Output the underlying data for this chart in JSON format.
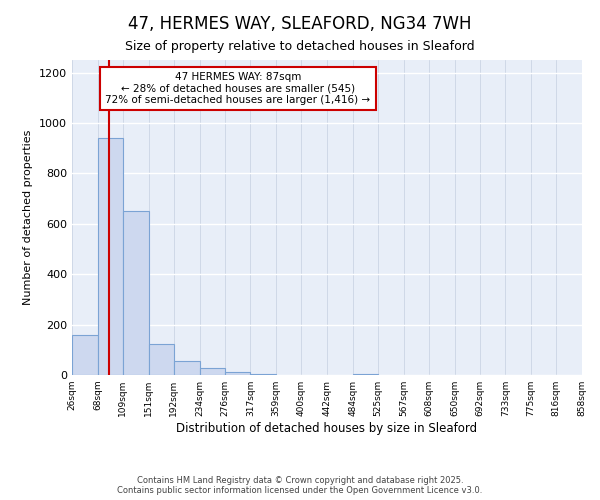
{
  "title1": "47, HERMES WAY, SLEAFORD, NG34 7WH",
  "title2": "Size of property relative to detached houses in Sleaford",
  "xlabel": "Distribution of detached houses by size in Sleaford",
  "ylabel": "Number of detached properties",
  "bin_edges": [
    26,
    68,
    109,
    151,
    192,
    234,
    276,
    317,
    359,
    400,
    442,
    484,
    525,
    567,
    608,
    650,
    692,
    733,
    775,
    816,
    858
  ],
  "bar_heights": [
    160,
    940,
    650,
    125,
    55,
    28,
    10,
    5,
    0,
    0,
    0,
    5,
    0,
    0,
    0,
    0,
    0,
    0,
    0,
    0
  ],
  "property_size": 87,
  "annotation_text": "47 HERMES WAY: 87sqm\n← 28% of detached houses are smaller (545)\n72% of semi-detached houses are larger (1,416) →",
  "bar_color": "#cdd8ef",
  "bar_edge_color": "#7ba3d4",
  "red_line_color": "#cc0000",
  "annotation_box_color": "#ffffff",
  "annotation_box_edge": "#cc0000",
  "footer1": "Contains HM Land Registry data © Crown copyright and database right 2025.",
  "footer2": "Contains public sector information licensed under the Open Government Licence v3.0.",
  "ylim": [
    0,
    1250
  ],
  "yticks": [
    0,
    200,
    400,
    600,
    800,
    1000,
    1200
  ],
  "bg_color": "#e8eef8"
}
